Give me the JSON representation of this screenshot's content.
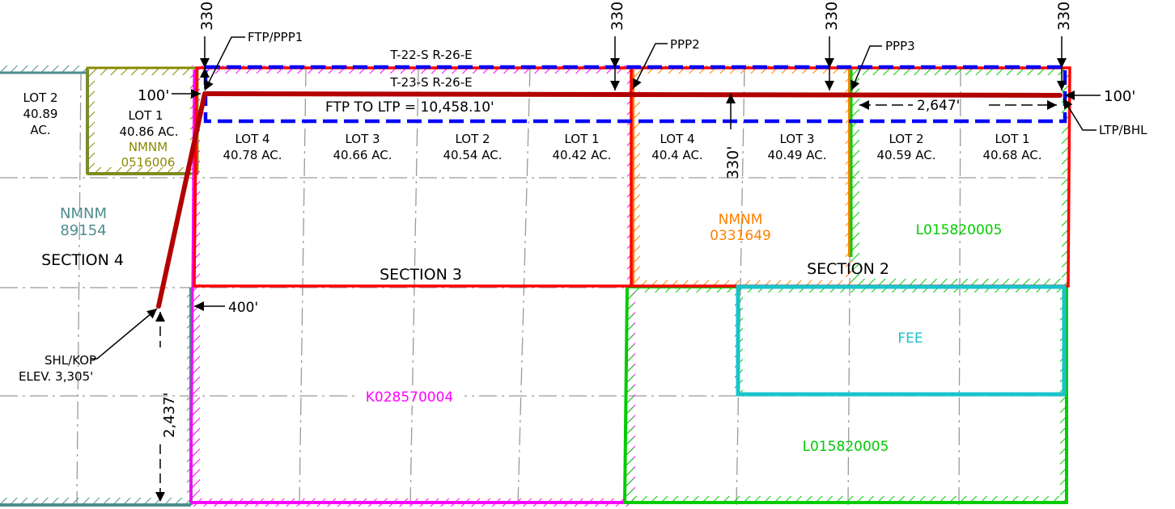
{
  "township": {
    "north": "T-22-S R-26-E",
    "south": "T-23-S R-26-E"
  },
  "points": {
    "ftp": "FTP/PPP1",
    "ppp2": "PPP2",
    "ppp3": "PPP3",
    "ltp": "LTP/BHL",
    "shl": "SHL/KOP",
    "elev": "ELEV. 3,305'"
  },
  "dims": {
    "setback_top": "330'",
    "setback_left": "100'",
    "setback_right": "100'",
    "lateral": "FTP TO LTP = 10,458.10'",
    "to_ppp3": "2,647'",
    "offset_400": "400'",
    "offset_2437": "2,437'"
  },
  "lots": [
    {
      "lot": "LOT 2",
      "acres": "40.89",
      "unit": "AC."
    },
    {
      "lot": "LOT 1",
      "acres": "40.86 AC."
    },
    {
      "lot": "LOT 4",
      "acres": "40.78 AC."
    },
    {
      "lot": "LOT 3",
      "acres": "40.66 AC."
    },
    {
      "lot": "LOT 2",
      "acres": "40.54 AC."
    },
    {
      "lot": "LOT 1",
      "acres": "40.42 AC."
    },
    {
      "lot": "LOT 4",
      "acres": "40.4 AC."
    },
    {
      "lot": "LOT 3",
      "acres": "40.49 AC."
    },
    {
      "lot": "LOT 2",
      "acres": "40.59 AC."
    },
    {
      "lot": "LOT 1",
      "acres": "40.68 AC."
    }
  ],
  "sections": {
    "s4": "SECTION 4",
    "s3": "SECTION 3",
    "s2": "SECTION 2"
  },
  "leases": {
    "nm_olive_1": "NMNM",
    "nm_olive_2": "0516006",
    "nm_teal_1": "NMNM",
    "nm_teal_2": "89154",
    "nm_orange_1": "NMNM",
    "nm_orange_2": "0331649",
    "k_lease": "K028570004",
    "l_lease_top": "L015820005",
    "l_lease_bottom": "L015820005",
    "fee": "FEE"
  },
  "colors": {
    "teal": "#4e8d8e",
    "olive": "#8a8a00",
    "magenta": "#ff00ff",
    "red": "#ff0000",
    "darkred": "#b30000",
    "blue": "#0000ff",
    "orange": "#ff8000",
    "green": "#00cc00",
    "cyan": "#19c3cc",
    "grid": "#9a9a9a"
  }
}
